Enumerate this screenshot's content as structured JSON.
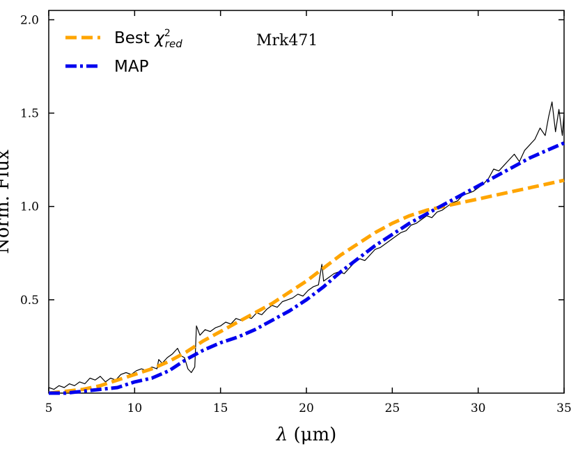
{
  "chart_data": {
    "type": "line",
    "title": "",
    "annotation": "Mrk471",
    "xlabel_symbol": "λ",
    "xlabel_unit": "(μm)",
    "ylabel": "Norm. Flux",
    "xlim": [
      5,
      35
    ],
    "ylim": [
      0,
      2.05
    ],
    "xticks": [
      5,
      10,
      15,
      20,
      25,
      30,
      35
    ],
    "xtick_labels": [
      "5",
      "10",
      "15",
      "20",
      "25",
      "30",
      "35"
    ],
    "yticks": [
      0.5,
      1.0,
      1.5,
      2.0
    ],
    "ytick_labels": [
      "0.5",
      "1.0",
      "1.5",
      "2.0"
    ],
    "legend": {
      "placement": "top-left",
      "entries": [
        {
          "label": "Best",
          "math": "χ",
          "sup": "2",
          "sub": "red",
          "series": "best_chi2"
        },
        {
          "label": "MAP",
          "series": "map"
        }
      ]
    },
    "series": [
      {
        "name": "Observed spectrum",
        "id": "observed",
        "color": "#000000",
        "style": "solid",
        "x": [
          5.0,
          5.3,
          5.6,
          5.9,
          6.2,
          6.5,
          6.8,
          7.1,
          7.4,
          7.7,
          8.0,
          8.3,
          8.6,
          8.9,
          9.2,
          9.5,
          9.8,
          10.1,
          10.4,
          10.7,
          11.0,
          11.3,
          11.4,
          11.6,
          11.9,
          12.2,
          12.5,
          12.7,
          12.9,
          13.1,
          13.3,
          13.5,
          13.6,
          13.8,
          14.1,
          14.4,
          14.7,
          15.0,
          15.3,
          15.6,
          15.9,
          16.2,
          16.5,
          16.8,
          17.1,
          17.4,
          17.7,
          18.0,
          18.3,
          18.6,
          18.9,
          19.2,
          19.5,
          19.8,
          20.1,
          20.4,
          20.7,
          20.9,
          21.0,
          21.3,
          21.6,
          21.9,
          22.2,
          22.5,
          22.8,
          23.1,
          23.4,
          23.7,
          24.0,
          24.3,
          24.6,
          24.9,
          25.2,
          25.5,
          25.8,
          26.1,
          26.4,
          26.7,
          27.0,
          27.3,
          27.6,
          27.9,
          28.2,
          28.5,
          28.8,
          29.1,
          29.4,
          29.7,
          30.0,
          30.3,
          30.6,
          30.9,
          31.2,
          31.5,
          31.8,
          32.1,
          32.4,
          32.7,
          33.0,
          33.3,
          33.6,
          33.9,
          34.1,
          34.3,
          34.5,
          34.7,
          34.9,
          35.0
        ],
        "y": [
          0.03,
          0.02,
          0.04,
          0.03,
          0.05,
          0.04,
          0.06,
          0.05,
          0.08,
          0.07,
          0.09,
          0.06,
          0.08,
          0.07,
          0.1,
          0.11,
          0.1,
          0.12,
          0.13,
          0.12,
          0.14,
          0.13,
          0.18,
          0.16,
          0.19,
          0.21,
          0.24,
          0.2,
          0.19,
          0.13,
          0.11,
          0.14,
          0.36,
          0.31,
          0.34,
          0.33,
          0.35,
          0.36,
          0.38,
          0.37,
          0.4,
          0.39,
          0.41,
          0.4,
          0.43,
          0.42,
          0.45,
          0.47,
          0.46,
          0.49,
          0.5,
          0.51,
          0.53,
          0.52,
          0.55,
          0.57,
          0.58,
          0.69,
          0.6,
          0.62,
          0.64,
          0.65,
          0.64,
          0.67,
          0.7,
          0.72,
          0.71,
          0.74,
          0.77,
          0.78,
          0.8,
          0.82,
          0.84,
          0.86,
          0.87,
          0.9,
          0.91,
          0.93,
          0.95,
          0.94,
          0.97,
          0.98,
          1.0,
          1.02,
          1.03,
          1.06,
          1.07,
          1.08,
          1.1,
          1.12,
          1.15,
          1.2,
          1.19,
          1.22,
          1.25,
          1.28,
          1.24,
          1.3,
          1.33,
          1.36,
          1.42,
          1.38,
          1.48,
          1.56,
          1.4,
          1.52,
          1.38,
          1.5
        ]
      },
      {
        "name": "Best χ²red",
        "id": "best_chi2",
        "color": "#ffa500",
        "style": "dashed",
        "x": [
          5,
          6,
          7,
          8,
          9,
          10,
          11,
          12,
          13,
          14,
          15,
          16,
          17,
          18,
          19,
          20,
          21,
          22,
          23,
          24,
          25,
          26,
          27,
          28,
          29,
          30,
          31,
          32,
          33,
          34,
          35
        ],
        "y": [
          0.0,
          0.01,
          0.02,
          0.04,
          0.07,
          0.1,
          0.13,
          0.17,
          0.22,
          0.28,
          0.33,
          0.38,
          0.43,
          0.48,
          0.54,
          0.6,
          0.67,
          0.74,
          0.8,
          0.86,
          0.91,
          0.95,
          0.98,
          1.0,
          1.02,
          1.04,
          1.06,
          1.08,
          1.1,
          1.12,
          1.14
        ]
      },
      {
        "name": "MAP",
        "id": "map",
        "color": "#0000ee",
        "style": "dashdot",
        "x": [
          5,
          6,
          7,
          8,
          9,
          10,
          11,
          12,
          13,
          14,
          15,
          16,
          17,
          18,
          19,
          20,
          21,
          22,
          23,
          24,
          25,
          26,
          27,
          28,
          29,
          30,
          31,
          32,
          33,
          34,
          35
        ],
        "y": [
          0.0,
          0.0,
          0.01,
          0.02,
          0.03,
          0.06,
          0.08,
          0.12,
          0.18,
          0.23,
          0.27,
          0.3,
          0.34,
          0.39,
          0.44,
          0.5,
          0.57,
          0.65,
          0.72,
          0.79,
          0.85,
          0.91,
          0.96,
          1.01,
          1.06,
          1.11,
          1.16,
          1.21,
          1.26,
          1.3,
          1.34
        ]
      }
    ]
  }
}
